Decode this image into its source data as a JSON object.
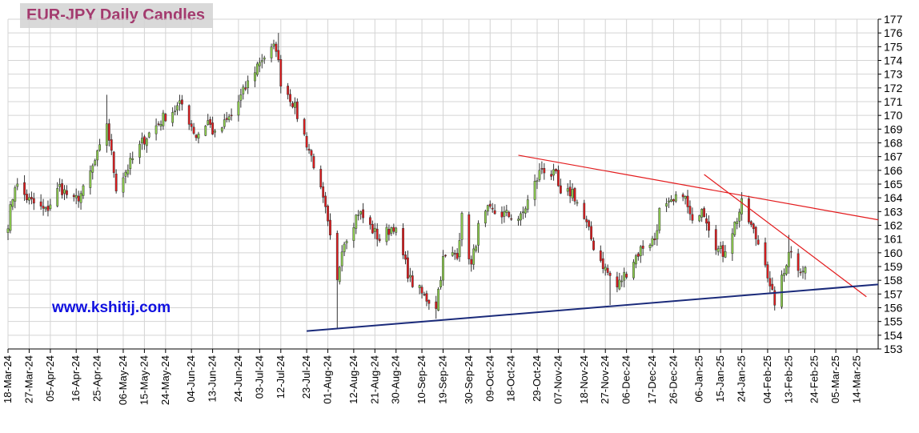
{
  "chart_data": {
    "type": "candlestick",
    "title": "EUR-JPY Daily  Candles",
    "watermark": "www.kshitij.com",
    "ylim": [
      153,
      177
    ],
    "yticks": [
      153,
      154,
      155,
      156,
      157,
      158,
      159,
      160,
      161,
      162,
      163,
      164,
      165,
      166,
      167,
      168,
      169,
      170,
      171,
      172,
      173,
      174,
      175,
      176,
      177
    ],
    "xlim": [
      "2024-03-18",
      "2025-03-23"
    ],
    "xticks": [
      {
        "date": "2024-03-18",
        "label": "18-Mar-24"
      },
      {
        "date": "2024-03-27",
        "label": "27-Mar-24"
      },
      {
        "date": "2024-04-05",
        "label": "05-Apr-24"
      },
      {
        "date": "2024-04-16",
        "label": "16-Apr-24"
      },
      {
        "date": "2024-04-25",
        "label": "25-Apr-24"
      },
      {
        "date": "2024-05-06",
        "label": "06-May-24"
      },
      {
        "date": "2024-05-15",
        "label": "15-May-24"
      },
      {
        "date": "2024-05-24",
        "label": "24-May-24"
      },
      {
        "date": "2024-06-04",
        "label": "04-Jun-24"
      },
      {
        "date": "2024-06-13",
        "label": "13-Jun-24"
      },
      {
        "date": "2024-06-24",
        "label": "24-Jun-24"
      },
      {
        "date": "2024-07-03",
        "label": "03-Jul-24"
      },
      {
        "date": "2024-07-12",
        "label": "12-Jul-24"
      },
      {
        "date": "2024-07-23",
        "label": "23-Jul-24"
      },
      {
        "date": "2024-08-01",
        "label": "01-Aug-24"
      },
      {
        "date": "2024-08-12",
        "label": "12-Aug-24"
      },
      {
        "date": "2024-08-21",
        "label": "21-Aug-24"
      },
      {
        "date": "2024-08-30",
        "label": "30-Aug-24"
      },
      {
        "date": "2024-09-10",
        "label": "10-Sep-24"
      },
      {
        "date": "2024-09-19",
        "label": "19-Sep-24"
      },
      {
        "date": "2024-09-30",
        "label": "30-Sep-24"
      },
      {
        "date": "2024-10-09",
        "label": "09-Oct-24"
      },
      {
        "date": "2024-10-18",
        "label": "18-Oct-24"
      },
      {
        "date": "2024-10-29",
        "label": "29-Oct-24"
      },
      {
        "date": "2024-11-07",
        "label": "07-Nov-24"
      },
      {
        "date": "2024-11-18",
        "label": "18-Nov-24"
      },
      {
        "date": "2024-11-27",
        "label": "27-Nov-24"
      },
      {
        "date": "2024-12-06",
        "label": "06-Dec-24"
      },
      {
        "date": "2024-12-17",
        "label": "17-Dec-24"
      },
      {
        "date": "2024-12-26",
        "label": "26-Dec-24"
      },
      {
        "date": "2025-01-06",
        "label": "06-Jan-25"
      },
      {
        "date": "2025-01-15",
        "label": "15-Jan-25"
      },
      {
        "date": "2025-01-24",
        "label": "24-Jan-25"
      },
      {
        "date": "2025-02-04",
        "label": "04-Feb-25"
      },
      {
        "date": "2025-02-13",
        "label": "13-Feb-25"
      },
      {
        "date": "2025-02-24",
        "label": "24-Feb-25"
      },
      {
        "date": "2025-03-05",
        "label": "05-Mar-25"
      },
      {
        "date": "2025-03-14",
        "label": "14-Mar-25"
      }
    ],
    "grid": true,
    "up_color": "#8fd14f",
    "down_color": "#e31a1c",
    "anchors": [
      {
        "date": "2024-03-18",
        "price": 162.2
      },
      {
        "date": "2024-03-21",
        "price": 165.0
      },
      {
        "date": "2024-03-27",
        "price": 163.8
      },
      {
        "date": "2024-04-03",
        "price": 163.0
      },
      {
        "date": "2024-04-09",
        "price": 164.8
      },
      {
        "date": "2024-04-15",
        "price": 163.7
      },
      {
        "date": "2024-04-19",
        "price": 164.5
      },
      {
        "date": "2024-04-26",
        "price": 167.5
      },
      {
        "date": "2024-04-29",
        "price": 169.5
      },
      {
        "date": "2024-05-03",
        "price": 164.8
      },
      {
        "date": "2024-05-09",
        "price": 166.5
      },
      {
        "date": "2024-05-15",
        "price": 168.3
      },
      {
        "date": "2024-05-24",
        "price": 170.0
      },
      {
        "date": "2024-05-31",
        "price": 170.8
      },
      {
        "date": "2024-06-06",
        "price": 168.5
      },
      {
        "date": "2024-06-11",
        "price": 169.6
      },
      {
        "date": "2024-06-14",
        "price": 168.5
      },
      {
        "date": "2024-06-21",
        "price": 170.0
      },
      {
        "date": "2024-06-27",
        "price": 172.0
      },
      {
        "date": "2024-07-03",
        "price": 174.0
      },
      {
        "date": "2024-07-10",
        "price": 175.0
      },
      {
        "date": "2024-07-12",
        "price": 172.5
      },
      {
        "date": "2024-07-17",
        "price": 171.0
      },
      {
        "date": "2024-07-23",
        "price": 168.0
      },
      {
        "date": "2024-07-26",
        "price": 166.5
      },
      {
        "date": "2024-07-31",
        "price": 163.0
      },
      {
        "date": "2024-08-05",
        "price": 157.8
      },
      {
        "date": "2024-08-07",
        "price": 160.5
      },
      {
        "date": "2024-08-14",
        "price": 163.0
      },
      {
        "date": "2024-08-23",
        "price": 161.0
      },
      {
        "date": "2024-08-29",
        "price": 162.0
      },
      {
        "date": "2024-09-05",
        "price": 158.0
      },
      {
        "date": "2024-09-11",
        "price": 156.8
      },
      {
        "date": "2024-09-16",
        "price": 156.2
      },
      {
        "date": "2024-09-19",
        "price": 159.5
      },
      {
        "date": "2024-09-25",
        "price": 160.0
      },
      {
        "date": "2024-09-27",
        "price": 162.5
      },
      {
        "date": "2024-10-01",
        "price": 159.0
      },
      {
        "date": "2024-10-04",
        "price": 161.8
      },
      {
        "date": "2024-10-08",
        "price": 163.0
      },
      {
        "date": "2024-10-15",
        "price": 162.8
      },
      {
        "date": "2024-10-22",
        "price": 162.5
      },
      {
        "date": "2024-10-28",
        "price": 165.0
      },
      {
        "date": "2024-10-31",
        "price": 166.2
      },
      {
        "date": "2024-11-06",
        "price": 165.5
      },
      {
        "date": "2024-11-08",
        "price": 164.0
      },
      {
        "date": "2024-11-13",
        "price": 164.5
      },
      {
        "date": "2024-11-19",
        "price": 162.0
      },
      {
        "date": "2024-11-22",
        "price": 160.5
      },
      {
        "date": "2024-11-27",
        "price": 158.8
      },
      {
        "date": "2024-12-02",
        "price": 157.5
      },
      {
        "date": "2024-12-09",
        "price": 159.5
      },
      {
        "date": "2024-12-13",
        "price": 160.5
      },
      {
        "date": "2024-12-18",
        "price": 161.0
      },
      {
        "date": "2024-12-20",
        "price": 163.0
      },
      {
        "date": "2024-12-26",
        "price": 163.6
      },
      {
        "date": "2024-12-30",
        "price": 164.5
      },
      {
        "date": "2025-01-03",
        "price": 162.0
      },
      {
        "date": "2025-01-07",
        "price": 163.5
      },
      {
        "date": "2025-01-10",
        "price": 162.0
      },
      {
        "date": "2025-01-14",
        "price": 160.2
      },
      {
        "date": "2025-01-16",
        "price": 160.0
      },
      {
        "date": "2025-01-22",
        "price": 162.5
      },
      {
        "date": "2025-01-24",
        "price": 163.5
      },
      {
        "date": "2025-01-29",
        "price": 161.5
      },
      {
        "date": "2025-02-03",
        "price": 159.5
      },
      {
        "date": "2025-02-05",
        "price": 157.3
      },
      {
        "date": "2025-02-07",
        "price": 156.5
      },
      {
        "date": "2025-02-11",
        "price": 158.5
      },
      {
        "date": "2025-02-13",
        "price": 160.3
      },
      {
        "date": "2025-02-17",
        "price": 159.0
      },
      {
        "date": "2025-02-20",
        "price": 158.8
      }
    ],
    "spikes": [
      {
        "date": "2024-04-29",
        "high": 171.5
      },
      {
        "date": "2024-07-11",
        "high": 176.0
      },
      {
        "date": "2024-08-05",
        "low": 154.5
      },
      {
        "date": "2024-09-16",
        "low": 155.2
      },
      {
        "date": "2024-11-29",
        "low": 156.2
      },
      {
        "date": "2025-02-07",
        "low": 155.8
      },
      {
        "date": "2025-02-13",
        "high": 161.3
      }
    ],
    "trendlines": [
      {
        "color": "#e31a1c",
        "start": {
          "date": "2024-10-21",
          "price": 167.1
        },
        "end": {
          "date": "2025-03-23",
          "price": 162.4
        }
      },
      {
        "color": "#e31a1c",
        "start": {
          "date": "2025-01-08",
          "price": 165.7
        },
        "end": {
          "date": "2025-03-18",
          "price": 156.8
        }
      },
      {
        "color": "#1a2a7a",
        "start": {
          "date": "2024-07-23",
          "price": 154.3
        },
        "end": {
          "date": "2025-03-23",
          "price": 157.7
        }
      }
    ]
  }
}
